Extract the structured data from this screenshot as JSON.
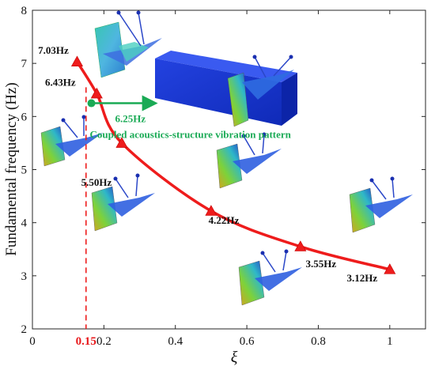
{
  "colors": {
    "curve": "#ee1c1c",
    "marker": "#ee1c1c",
    "green": "#1aaa55",
    "red_text": "#e8191c",
    "axis": "#262626",
    "label": "#111111",
    "block": "#1133d8"
  },
  "chart_data": {
    "type": "line",
    "title": "",
    "xlabel": "ξ",
    "ylabel": "Fundamental frequency (Hz)",
    "xlim": [
      0,
      1.1
    ],
    "ylim": [
      2,
      8
    ],
    "xticks": [
      0,
      0.2,
      0.4,
      0.6,
      0.8,
      1
    ],
    "xtick_labels": [
      "0",
      "0.2",
      "0.4",
      "0.6",
      "0.8",
      "1"
    ],
    "yticks": [
      2,
      3,
      4,
      5,
      6,
      7,
      8
    ],
    "ytick_labels": [
      "2",
      "3",
      "4",
      "5",
      "6",
      "7",
      "8"
    ],
    "grid": false,
    "series": [
      {
        "x": [
          0.125,
          0.18,
          0.25,
          0.5,
          0.75,
          1.0
        ],
        "y": [
          7.03,
          6.43,
          5.5,
          4.22,
          3.55,
          3.12
        ],
        "labels": [
          "7.03Hz",
          "6.43Hz",
          "5.50Hz",
          "4.22Hz",
          "3.55Hz",
          "3.12Hz"
        ]
      }
    ],
    "coupled_point": {
      "x": 0.2,
      "y": 6.25,
      "label": "6.25Hz"
    },
    "annotation": "Coupled acoustics-structure vibration pattern",
    "marked_x": {
      "value": 0.15,
      "label": "0.15"
    }
  }
}
